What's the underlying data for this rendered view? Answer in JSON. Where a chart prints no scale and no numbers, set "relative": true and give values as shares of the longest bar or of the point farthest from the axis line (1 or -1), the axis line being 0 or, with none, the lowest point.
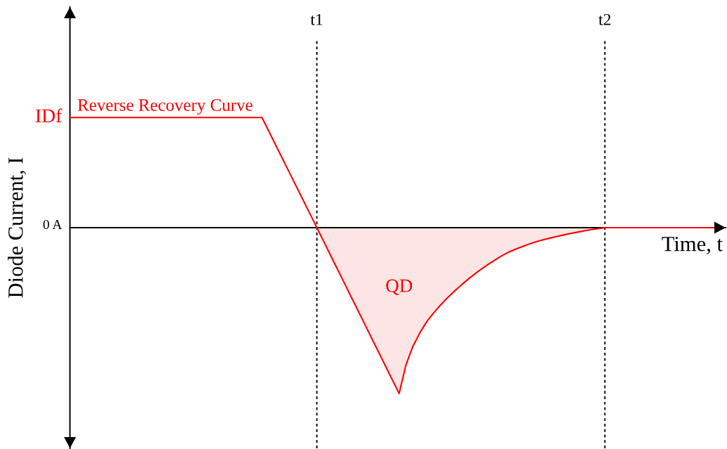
{
  "chart_data": {
    "type": "line",
    "xlabel": "Time, t",
    "ylabel": "Diode Current, I",
    "relative": true,
    "categories": [
      null,
      null,
      null,
      null,
      null,
      null,
      null,
      null,
      null,
      null,
      null,
      null,
      null,
      null,
      null,
      null,
      null,
      null,
      null,
      null,
      null,
      null,
      null,
      null,
      null,
      null,
      null,
      null,
      null,
      null,
      null,
      null,
      null,
      null,
      null,
      null,
      "t1",
      null,
      null,
      null,
      null,
      null,
      null,
      null,
      null,
      null,
      null,
      null,
      null,
      null,
      null,
      null,
      null,
      null,
      null,
      null,
      null,
      null,
      null,
      null,
      null,
      null,
      null,
      null,
      null,
      null,
      null,
      null,
      null,
      null,
      null,
      null,
      null,
      null,
      null,
      null,
      null,
      null,
      "t2",
      null,
      null,
      null,
      null,
      null,
      null,
      null,
      null,
      null,
      null,
      null,
      null,
      null,
      null,
      null,
      null
    ],
    "series": [
      {
        "name": "Reverse Recovery Curve",
        "color": "#ff0000",
        "values": [
          0.664,
          0.664,
          0.664,
          0.664,
          0.664,
          0.664,
          0.664,
          0.664,
          0.664,
          0.664,
          0.664,
          0.664,
          0.664,
          0.664,
          0.664,
          0.664,
          0.664,
          0.664,
          0.664,
          0.664,
          0.664,
          0.664,
          0.664,
          0.664,
          0.664,
          0.664,
          0.664,
          0.664,
          0.664,
          0.581,
          0.498,
          0.415,
          0.332,
          0.249,
          0.166,
          0.083,
          0,
          -0.083,
          -0.167,
          -0.25,
          -0.333,
          -0.417,
          -0.5,
          -0.583,
          -0.667,
          -0.75,
          -0.833,
          -0.917,
          -1,
          -0.826,
          -0.716,
          -0.636,
          -0.568,
          -0.515,
          -0.468,
          -0.425,
          -0.385,
          -0.348,
          -0.313,
          -0.28,
          -0.249,
          -0.221,
          -0.194,
          -0.169,
          -0.147,
          -0.129,
          -0.113,
          -0.098,
          -0.085,
          -0.073,
          -0.063,
          -0.053,
          -0.044,
          -0.035,
          -0.027,
          -0.019,
          -0.012,
          -0.006,
          0,
          0,
          0,
          0,
          0,
          0,
          0,
          0,
          0,
          0,
          0,
          0,
          0,
          0,
          0,
          0,
          0
        ]
      },
      {
        "type": "area",
        "color": "#fde5e5",
        "values": [
          null,
          null,
          null,
          null,
          null,
          null,
          null,
          null,
          null,
          null,
          null,
          null,
          null,
          null,
          null,
          null,
          null,
          null,
          null,
          null,
          null,
          null,
          null,
          null,
          null,
          null,
          null,
          null,
          null,
          null,
          null,
          null,
          null,
          null,
          null,
          null,
          0,
          -0.083,
          -0.167,
          -0.25,
          -0.333,
          -0.417,
          -0.5,
          -0.583,
          -0.667,
          -0.75,
          -0.833,
          -0.917,
          -1,
          -0.826,
          -0.716,
          -0.636,
          -0.568,
          -0.515,
          -0.468,
          -0.425,
          -0.385,
          -0.348,
          -0.313,
          -0.28,
          -0.249,
          -0.221,
          -0.194,
          -0.169,
          -0.147,
          -0.129,
          -0.113,
          -0.098,
          -0.085,
          -0.073,
          -0.063,
          -0.053,
          -0.044,
          -0.035,
          -0.027,
          -0.019,
          -0.012,
          -0.006,
          0,
          null,
          null,
          null,
          null,
          null,
          null,
          null,
          null,
          null,
          null,
          null,
          null,
          null,
          null,
          null,
          null
        ]
      }
    ],
    "tick_labels": "x",
    "grid": "x",
    "annotations": [
      "IDf",
      "0 A",
      "QD"
    ],
    "marker": "none",
    "line_style": "solid"
  }
}
